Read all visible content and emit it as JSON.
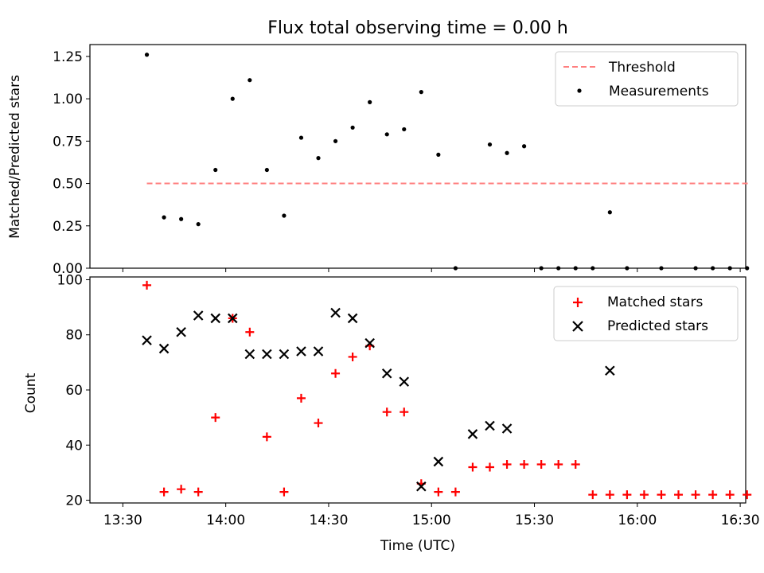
{
  "chart_data": [
    {
      "type": "scatter",
      "title": "Flux total observing time = 0.00 h",
      "xlabel": "",
      "ylabel": "Matched/Predicted stars",
      "xlim": [
        -9.6,
        181.6
      ],
      "ylim": [
        0,
        1.32
      ],
      "xtick_values": [
        0,
        30,
        60,
        90,
        120,
        150,
        180
      ],
      "yticks": [
        "0.00",
        "0.25",
        "0.50",
        "0.75",
        "1.00",
        "1.25"
      ],
      "ytick_values": [
        0,
        0.25,
        0.5,
        0.75,
        1.0,
        1.25
      ],
      "legend_position": "top-right",
      "threshold": {
        "name": "Threshold",
        "value": 0.5,
        "x_range": [
          7,
          183
        ],
        "color": "#ff7f7f"
      },
      "series": [
        {
          "name": "Measurements",
          "color": "#000000",
          "marker": "dot",
          "x": [
            7,
            12,
            17,
            22,
            27,
            32,
            37,
            42,
            47,
            52,
            57,
            62,
            67,
            72,
            77,
            82,
            87,
            92,
            97,
            102,
            107,
            112,
            117,
            122,
            127,
            132,
            137,
            142,
            147,
            152,
            157,
            162,
            167,
            172,
            177,
            182
          ],
          "y": [
            1.26,
            0.3,
            0.29,
            0.26,
            0.58,
            1.0,
            1.11,
            0.58,
            0.31,
            0.77,
            0.65,
            0.75,
            0.83,
            0.98,
            0.79,
            0.82,
            1.04,
            0.67,
            0.0,
            null,
            0.73,
            0.68,
            0.72,
            0.0,
            0.0,
            0.0,
            0.0,
            0.33,
            0.0,
            null,
            0.0,
            null,
            0.0,
            0.0,
            0.0,
            0.0
          ]
        }
      ]
    },
    {
      "type": "scatter",
      "title": "",
      "xlabel": "Time (UTC)",
      "ylabel": "Count",
      "xlim": [
        -9.6,
        181.6
      ],
      "ylim": [
        19,
        101
      ],
      "xticks": [
        "13:30",
        "14:00",
        "14:30",
        "15:00",
        "15:30",
        "16:00",
        "16:30"
      ],
      "xtick_values": [
        0,
        30,
        60,
        90,
        120,
        150,
        180
      ],
      "yticks": [
        "20",
        "40",
        "60",
        "80",
        "100"
      ],
      "ytick_values": [
        20,
        40,
        60,
        80,
        100
      ],
      "legend_position": "top-right",
      "series": [
        {
          "name": "Matched stars",
          "color": "#ff0000",
          "marker": "plus",
          "x": [
            7,
            12,
            17,
            22,
            27,
            32,
            37,
            42,
            47,
            52,
            57,
            62,
            67,
            72,
            77,
            82,
            87,
            92,
            97,
            102,
            107,
            112,
            117,
            122,
            127,
            132,
            137,
            142,
            147,
            152,
            157,
            162,
            167,
            172,
            177,
            182
          ],
          "y": [
            98,
            23,
            24,
            23,
            50,
            86,
            81,
            43,
            23,
            57,
            48,
            66,
            72,
            76,
            52,
            52,
            26,
            23,
            23,
            32,
            32,
            33,
            33,
            33,
            33,
            33,
            22,
            22,
            22,
            22,
            22,
            22,
            22,
            22,
            22,
            22
          ]
        },
        {
          "name": "Predicted stars",
          "color": "#000000",
          "marker": "x",
          "x": [
            7,
            12,
            17,
            22,
            27,
            32,
            37,
            42,
            47,
            52,
            57,
            62,
            67,
            72,
            77,
            82,
            87,
            92,
            102,
            107,
            112,
            142
          ],
          "y": [
            78,
            75,
            81,
            87,
            86,
            86,
            73,
            73,
            73,
            74,
            74,
            88,
            86,
            77,
            66,
            63,
            25,
            34,
            44,
            47,
            46,
            67
          ]
        }
      ]
    }
  ]
}
